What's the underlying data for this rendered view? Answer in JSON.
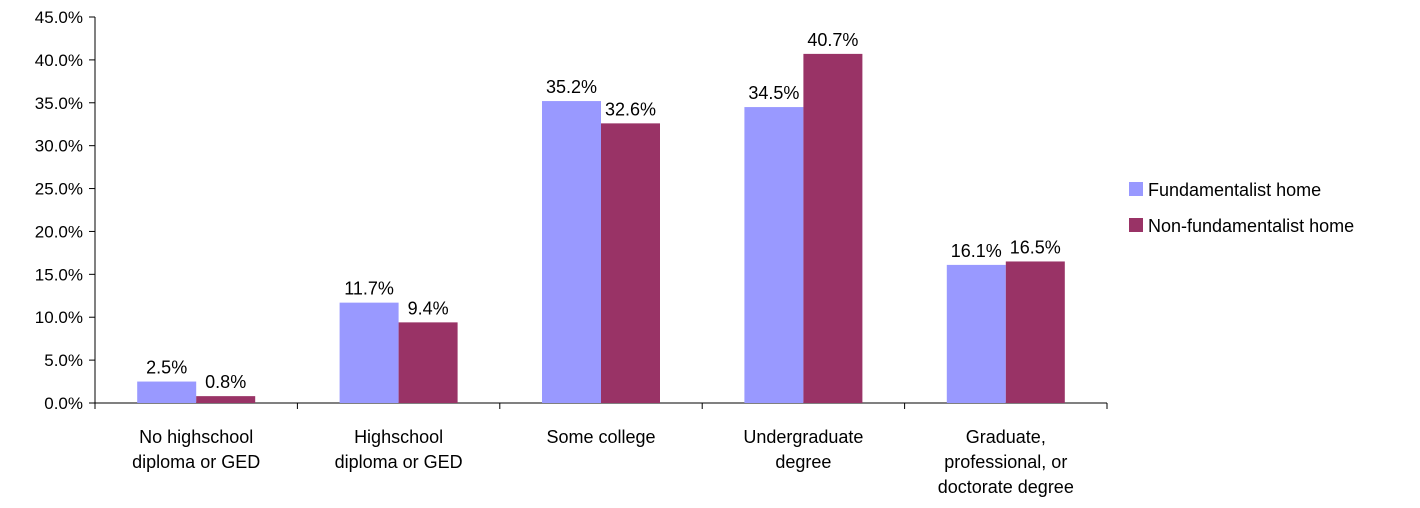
{
  "chart_data": {
    "type": "bar",
    "categories": [
      [
        "No highschool",
        "diploma or GED"
      ],
      [
        "Highschool",
        "diploma or GED"
      ],
      [
        "Some college"
      ],
      [
        "Undergraduate",
        "degree"
      ],
      [
        "Graduate,",
        "professional, or",
        "doctorate degree"
      ]
    ],
    "series": [
      {
        "name": "Fundamentalist home",
        "color": "#9999ff",
        "values": [
          2.5,
          11.7,
          35.2,
          34.5,
          16.1
        ],
        "labels": [
          "2.5%",
          "11.7%",
          "35.2%",
          "34.5%",
          "16.1%"
        ]
      },
      {
        "name": "Non-fundamentalist home",
        "color": "#993366",
        "values": [
          0.8,
          9.4,
          32.6,
          40.7,
          16.5
        ],
        "labels": [
          "0.8%",
          "9.4%",
          "32.6%",
          "40.7%",
          "16.5%"
        ]
      }
    ],
    "ylim": [
      0,
      45
    ],
    "yticks": [
      0,
      5,
      10,
      15,
      20,
      25,
      30,
      35,
      40,
      45
    ],
    "ytick_labels": [
      "0.0%",
      "5.0%",
      "10.0%",
      "15.0%",
      "20.0%",
      "25.0%",
      "30.0%",
      "35.0%",
      "40.0%",
      "45.0%"
    ],
    "grid": false,
    "legend_position": "right"
  }
}
